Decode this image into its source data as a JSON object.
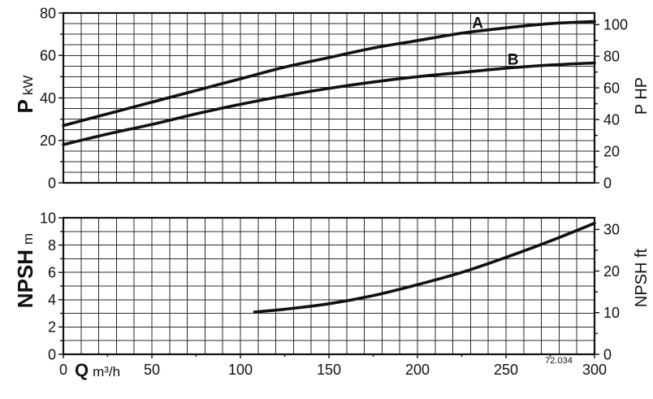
{
  "figure_ref": "72.034",
  "colors": {
    "ink": "#111111",
    "grid": "#2b2b2b",
    "background": "#ffffff"
  },
  "chart_data": [
    {
      "type": "line",
      "ylabel": {
        "symbol": "P",
        "unit": "kW"
      },
      "y2label": "P HP",
      "xlim": [
        0,
        300
      ],
      "ylim": [
        0,
        80
      ],
      "y2lim": [
        0,
        107.3
      ],
      "yticks": [
        0,
        20,
        40,
        60,
        80
      ],
      "y2ticks": [
        0,
        20,
        40,
        60,
        80,
        100
      ],
      "grid": true,
      "grid_step": {
        "x": 10,
        "y": 5
      },
      "series": [
        {
          "name": "A",
          "x": [
            0,
            25,
            50,
            75,
            100,
            125,
            150,
            175,
            200,
            225,
            250,
            275,
            300
          ],
          "y": [
            27,
            32.5,
            38,
            43.5,
            49,
            54.5,
            59,
            63.5,
            67,
            70.5,
            73,
            75,
            76
          ]
        },
        {
          "name": "B",
          "x": [
            0,
            25,
            50,
            75,
            100,
            125,
            150,
            175,
            200,
            225,
            250,
            275,
            300
          ],
          "y": [
            18,
            23,
            27.5,
            32.5,
            37,
            41,
            44.5,
            47.5,
            50,
            52,
            54,
            55.5,
            56.5
          ]
        }
      ]
    },
    {
      "type": "line",
      "xlabel": {
        "symbol": "Q",
        "unit": "m³/h"
      },
      "ylabel": {
        "symbol": "NPSH",
        "unit": "m"
      },
      "y2label": "NPSH ft",
      "xlim": [
        0,
        300
      ],
      "ylim": [
        0,
        10
      ],
      "y2lim": [
        0,
        32.8
      ],
      "xticks": [
        0,
        50,
        100,
        150,
        200,
        250,
        300
      ],
      "yticks": [
        0,
        2,
        4,
        6,
        8,
        10
      ],
      "y2ticks": [
        0,
        10,
        20,
        30
      ],
      "grid": true,
      "grid_step": {
        "x": 10,
        "y": 1
      },
      "series": [
        {
          "x": [
            108,
            125,
            150,
            175,
            200,
            225,
            250,
            275,
            300
          ],
          "y": [
            3.1,
            3.3,
            3.7,
            4.3,
            5.1,
            6.0,
            7.1,
            8.3,
            9.6
          ]
        }
      ]
    }
  ]
}
